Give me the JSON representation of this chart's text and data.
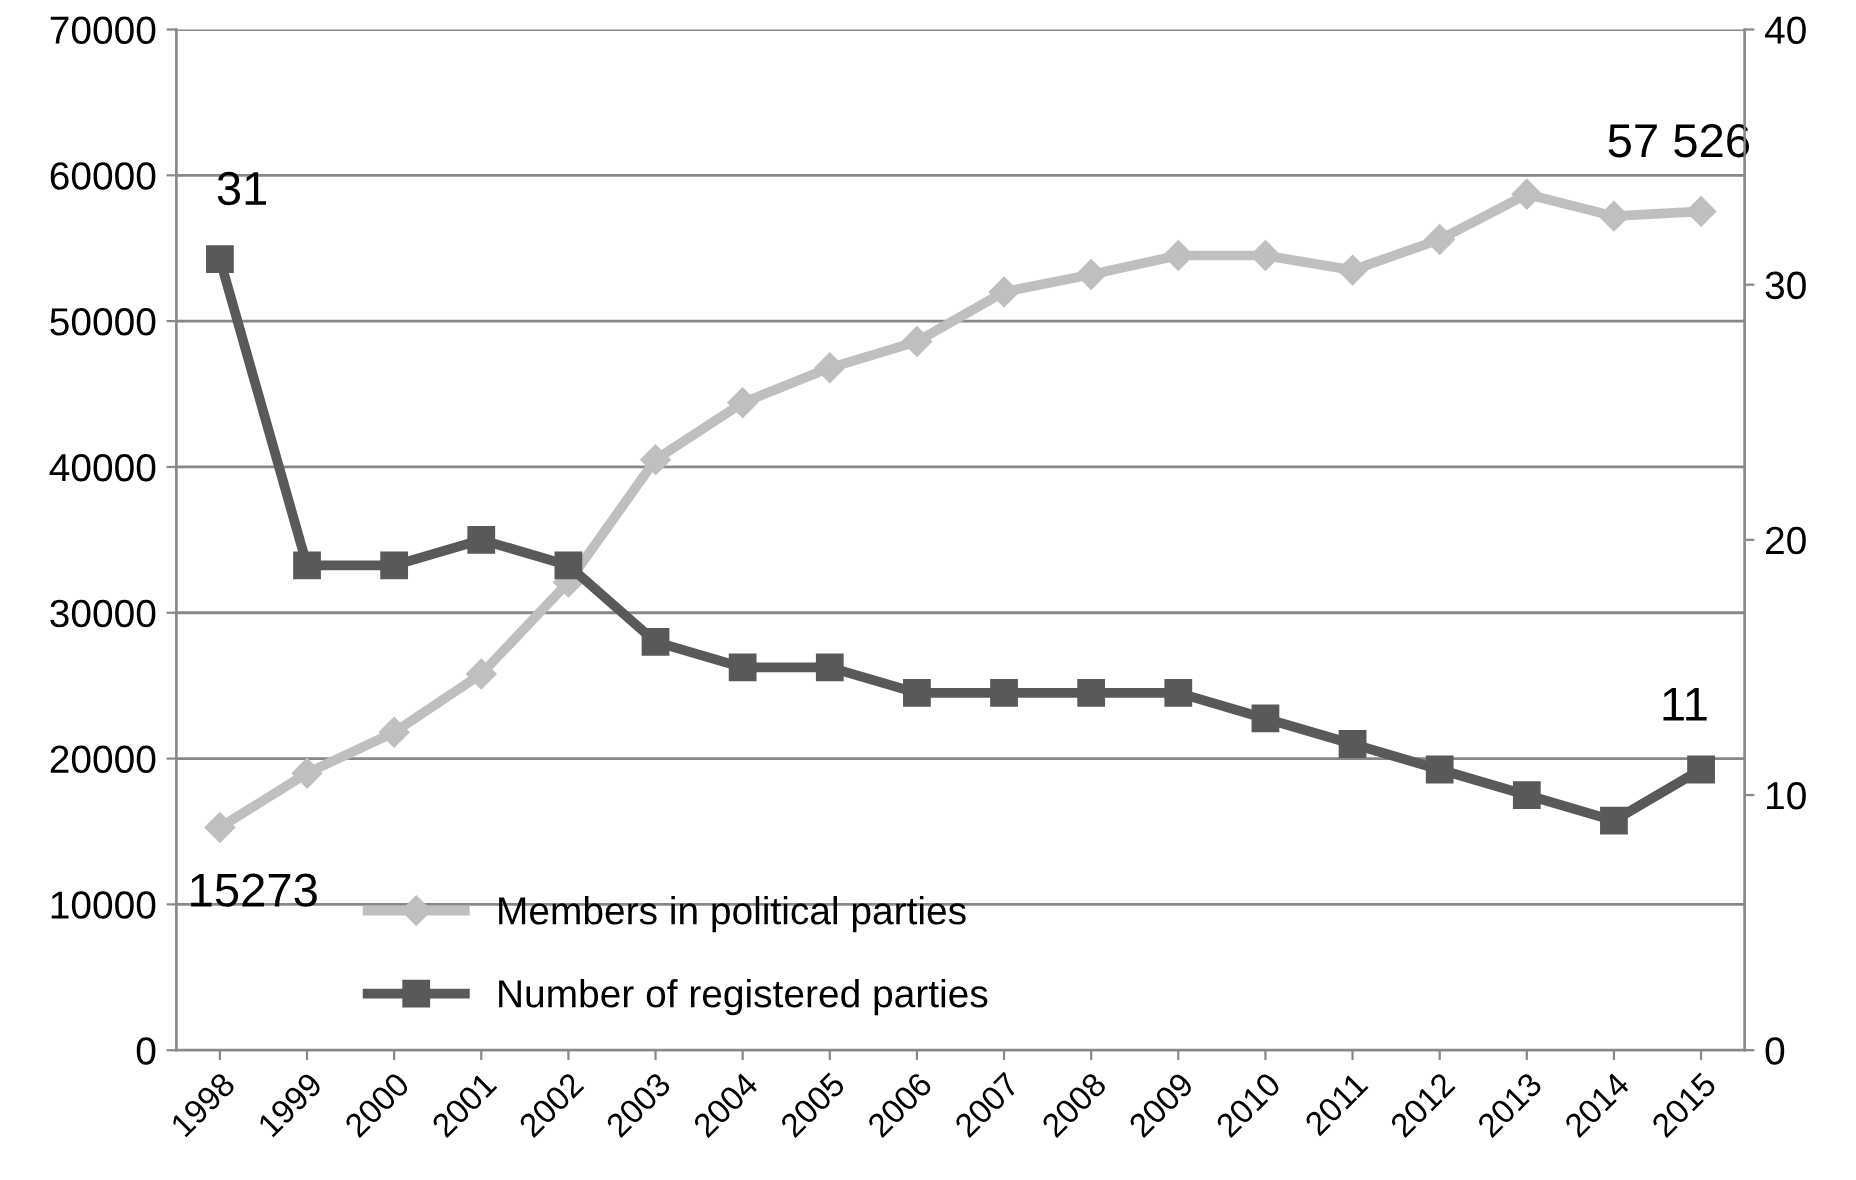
{
  "chart_data": {
    "type": "line",
    "categories": [
      "1998",
      "1999",
      "2000",
      "2001",
      "2002",
      "2003",
      "2004",
      "2005",
      "2006",
      "2007",
      "2008",
      "2009",
      "2010",
      "2011",
      "2012",
      "2013",
      "2014",
      "2015"
    ],
    "series": [
      {
        "name": "Members in political parties",
        "color": "#bfbfbf",
        "marker": "diamond",
        "values": [
          15273,
          19000,
          21800,
          25800,
          32100,
          40500,
          44400,
          46800,
          48600,
          52000,
          53200,
          54500,
          54500,
          53500,
          55600,
          58700,
          57200,
          57526
        ],
        "value_labels": [
          "15273",
          null,
          null,
          null,
          null,
          null,
          null,
          null,
          null,
          null,
          null,
          null,
          null,
          null,
          null,
          null,
          null,
          "57 526"
        ]
      },
      {
        "name": "Number of registered parties",
        "color": "#595959",
        "marker": "square",
        "axis": "y2",
        "values": [
          31,
          19,
          19,
          20,
          19,
          16,
          15,
          15,
          14,
          14,
          14,
          14,
          13,
          12,
          11,
          10,
          9,
          11
        ],
        "value_labels": [
          "31",
          null,
          null,
          null,
          null,
          null,
          null,
          null,
          null,
          null,
          null,
          null,
          null,
          null,
          null,
          null,
          null,
          "11"
        ]
      }
    ],
    "ylim": [
      0,
      70000
    ],
    "yticks": [
      0,
      10000,
      20000,
      30000,
      40000,
      50000,
      60000,
      70000
    ],
    "y2lim": [
      0,
      40
    ],
    "y2ticks": [
      0,
      10,
      20,
      30,
      40
    ],
    "grid": "y",
    "legend": "bottom",
    "line_style": "solid"
  }
}
